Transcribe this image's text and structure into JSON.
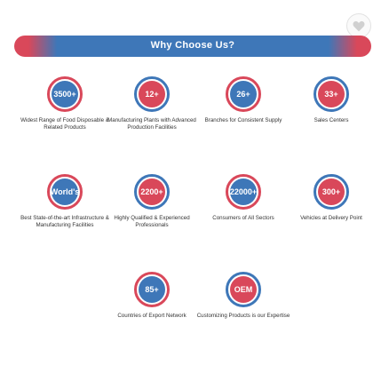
{
  "header": {
    "title": "Why Choose Us?"
  },
  "icons": {
    "favorite": "heart-icon"
  },
  "colors": {
    "blue": "#3e77b8",
    "red": "#d9485a"
  },
  "stats": [
    {
      "value": "3500+",
      "caption": "Widest Range of Food Disposable & Related Products"
    },
    {
      "value": "12+",
      "caption": "Manufacturing Plants with Advanced Production Facilities"
    },
    {
      "value": "26+",
      "caption": "Branches for Consistent Supply"
    },
    {
      "value": "33+",
      "caption": "Sales Centers"
    },
    {
      "value": "World's",
      "caption": "Best State-of-the-art Infrastructure & Manufacturing Facilities"
    },
    {
      "value": "2200+",
      "caption": "Highly Qualified & Experienced Professionals"
    },
    {
      "value": "22000+",
      "caption": "Consumers of All Sectors"
    },
    {
      "value": "300+",
      "caption": "Vehicles at Delivery Point"
    },
    {
      "value": "85+",
      "caption": "Countries of Export Network"
    },
    {
      "value": "OEM",
      "caption": "Customizing Products is our Expertise"
    }
  ]
}
